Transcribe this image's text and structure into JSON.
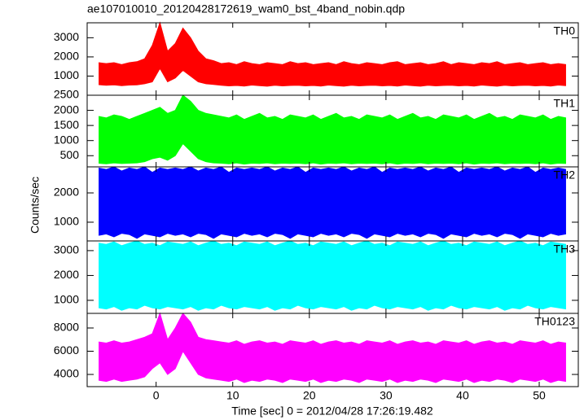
{
  "chart_data": {
    "type": "band",
    "title": "ae107010010_20120428172619_wam0_bst_4band_nobin.qdp",
    "ylabel": "Counts/sec",
    "xlabel": "Time [sec] 0 = 2012/04/28 17:26:19.482",
    "xlim": [
      -9,
      55.1
    ],
    "xticks": [
      0,
      10,
      20,
      30,
      40,
      50
    ],
    "x": [
      -7.5,
      -6.5,
      -5.5,
      -4.5,
      -3.5,
      -2.5,
      -1.5,
      -0.5,
      0.5,
      1.5,
      2.5,
      3.5,
      4.5,
      5.5,
      6.5,
      7.5,
      8.5,
      9.5,
      10.5,
      11.5,
      12.5,
      13.5,
      14.5,
      15.5,
      16.5,
      17.5,
      18.5,
      19.5,
      20.5,
      21.5,
      22.5,
      23.5,
      24.5,
      25.5,
      26.5,
      27.5,
      28.5,
      29.5,
      30.5,
      31.5,
      32.5,
      33.5,
      34.5,
      35.5,
      36.5,
      37.5,
      38.5,
      39.5,
      40.5,
      41.5,
      42.5,
      43.5,
      44.5,
      45.5,
      46.5,
      47.5,
      48.5,
      49.5,
      50.5,
      51.5,
      52.5,
      53.5
    ],
    "panels": [
      {
        "label": "TH0",
        "color": "#ff0000",
        "ylim": [
          0,
          3780
        ],
        "yticks": [
          1000,
          2000,
          3000
        ],
        "upper": [
          1700,
          1650,
          1700,
          1600,
          1700,
          1750,
          1900,
          2600,
          3780,
          2300,
          2700,
          3500,
          3000,
          2300,
          1900,
          1800,
          1650,
          1700,
          1600,
          1750,
          1650,
          1600,
          1700,
          1650,
          1600,
          1750,
          1650,
          1700,
          1600,
          1650,
          1700,
          1600,
          1750,
          1650,
          1600,
          1700,
          1650,
          1600,
          1700,
          1750,
          1600,
          1650,
          1700,
          1600,
          1650,
          1750,
          1600,
          1700,
          1650,
          1600,
          1700,
          1650,
          1750,
          1600,
          1650,
          1700,
          1600,
          1650,
          1700,
          1600,
          1650,
          1600
        ],
        "lower": [
          550,
          520,
          540,
          500,
          530,
          540,
          600,
          700,
          1400,
          700,
          900,
          1300,
          1000,
          700,
          600,
          560,
          520,
          490,
          510,
          480,
          530,
          500,
          470,
          520,
          490,
          510,
          520,
          490,
          510,
          480,
          530,
          500,
          470,
          520,
          490,
          510,
          520,
          490,
          510,
          480,
          530,
          500,
          470,
          520,
          490,
          510,
          520,
          490,
          510,
          480,
          530,
          500,
          470,
          520,
          490,
          510,
          520,
          490,
          510,
          480,
          530,
          500
        ]
      },
      {
        "label": "TH1",
        "color": "#00ff00",
        "ylim": [
          130,
          2500
        ],
        "yticks": [
          500,
          1000,
          1500,
          2000,
          2500
        ],
        "upper": [
          1800,
          1750,
          1850,
          1800,
          1700,
          1800,
          1900,
          2000,
          2100,
          1900,
          2000,
          2500,
          2300,
          2000,
          1900,
          1850,
          1800,
          1750,
          1850,
          1700,
          1800,
          1900,
          1750,
          1800,
          1700,
          1850,
          1800,
          1750,
          1850,
          1700,
          1800,
          1900,
          1750,
          1800,
          1700,
          1850,
          1800,
          1750,
          1850,
          1700,
          1800,
          1900,
          1750,
          1800,
          1700,
          1850,
          1800,
          1750,
          1850,
          1700,
          1800,
          1900,
          1750,
          1800,
          1700,
          1850,
          1800,
          1750,
          1850,
          1700,
          1800,
          1750
        ],
        "lower": [
          250,
          230,
          260,
          240,
          250,
          260,
          300,
          400,
          450,
          350,
          500,
          900,
          650,
          400,
          300,
          260,
          250,
          230,
          260,
          220,
          250,
          240,
          260,
          230,
          250,
          240,
          250,
          230,
          260,
          220,
          250,
          240,
          260,
          230,
          250,
          240,
          250,
          230,
          260,
          220,
          250,
          240,
          260,
          230,
          250,
          240,
          250,
          230,
          260,
          220,
          250,
          240,
          260,
          230,
          250,
          240,
          250,
          230,
          260,
          220,
          250,
          240
        ]
      },
      {
        "label": "TH2",
        "color": "#0000ff",
        "ylim": [
          360,
          2890
        ],
        "yticks": [
          1000,
          2000
        ],
        "upper": [
          2850,
          2800,
          2890,
          2750,
          2850,
          2800,
          2890,
          2700,
          2850,
          2800,
          2850,
          2800,
          2890,
          2750,
          2850,
          2800,
          2890,
          2700,
          2850,
          2800,
          2850,
          2800,
          2890,
          2750,
          2850,
          2800,
          2890,
          2700,
          2850,
          2800,
          2850,
          2800,
          2890,
          2750,
          2850,
          2800,
          2890,
          2700,
          2850,
          2800,
          2850,
          2800,
          2890,
          2750,
          2850,
          2800,
          2890,
          2700,
          2850,
          2800,
          2850,
          2800,
          2890,
          2750,
          2850,
          2800,
          2890,
          2700,
          2850,
          2800,
          2850,
          2800
        ],
        "lower": [
          550,
          600,
          500,
          620,
          580,
          450,
          600,
          550,
          500,
          620,
          550,
          600,
          500,
          620,
          580,
          450,
          600,
          550,
          500,
          620,
          550,
          600,
          500,
          620,
          580,
          450,
          600,
          550,
          500,
          620,
          550,
          600,
          500,
          620,
          580,
          450,
          600,
          550,
          500,
          620,
          550,
          600,
          500,
          620,
          580,
          450,
          600,
          550,
          500,
          620,
          550,
          600,
          500,
          620,
          580,
          450,
          600,
          550,
          500,
          620,
          550,
          600
        ]
      },
      {
        "label": "TH3",
        "color": "#00ffff",
        "ylim": [
          475,
          3390
        ],
        "yticks": [
          1000,
          2000,
          3000
        ],
        "upper": [
          3300,
          3250,
          3350,
          3200,
          3300,
          3390,
          3250,
          3300,
          3200,
          3350,
          3300,
          3250,
          3350,
          3200,
          3300,
          3390,
          3250,
          3300,
          3200,
          3350,
          3300,
          3250,
          3350,
          3200,
          3300,
          3390,
          3250,
          3300,
          3200,
          3350,
          3300,
          3250,
          3350,
          3200,
          3300,
          3390,
          3250,
          3300,
          3200,
          3350,
          3300,
          3250,
          3350,
          3200,
          3300,
          3390,
          3250,
          3300,
          3200,
          3350,
          3300,
          3250,
          3350,
          3200,
          3300,
          3390,
          3250,
          3300,
          3200,
          3350,
          3300,
          3250
        ],
        "lower": [
          700,
          650,
          750,
          600,
          700,
          650,
          800,
          700,
          650,
          750,
          700,
          650,
          750,
          600,
          700,
          650,
          800,
          700,
          650,
          750,
          700,
          650,
          750,
          600,
          700,
          650,
          800,
          700,
          650,
          750,
          700,
          650,
          750,
          600,
          700,
          650,
          800,
          700,
          650,
          750,
          700,
          650,
          750,
          600,
          700,
          650,
          800,
          700,
          650,
          750,
          700,
          650,
          750,
          600,
          700,
          650,
          800,
          700,
          650,
          750,
          700,
          650
        ]
      },
      {
        "label": "TH0123",
        "color": "#ff00ff",
        "ylim": [
          2950,
          9260
        ],
        "yticks": [
          4000,
          6000,
          8000
        ],
        "upper": [
          6800,
          6700,
          6900,
          6700,
          6800,
          7000,
          7200,
          7500,
          9260,
          7000,
          8000,
          9260,
          8500,
          7200,
          7000,
          6900,
          6800,
          6700,
          6900,
          6600,
          6800,
          6900,
          6700,
          6800,
          6600,
          6900,
          6800,
          6700,
          6900,
          6600,
          6800,
          6900,
          6700,
          6800,
          6600,
          6900,
          6800,
          6700,
          6900,
          6600,
          6800,
          6900,
          6700,
          6800,
          6600,
          6900,
          6800,
          6700,
          6900,
          6600,
          6800,
          6900,
          6700,
          6800,
          6600,
          6900,
          6800,
          6700,
          6900,
          6600,
          6800,
          6700
        ],
        "lower": [
          3500,
          3400,
          3600,
          3400,
          3500,
          3600,
          3800,
          4500,
          5000,
          4000,
          4500,
          6000,
          5000,
          4000,
          3700,
          3600,
          3500,
          3400,
          3600,
          3300,
          3500,
          3400,
          3600,
          3500,
          3300,
          3600,
          3500,
          3400,
          3600,
          3300,
          3500,
          3400,
          3600,
          3500,
          3300,
          3600,
          3500,
          3400,
          3600,
          3300,
          3500,
          3400,
          3600,
          3500,
          3300,
          3600,
          3500,
          3400,
          3600,
          3300,
          3500,
          3400,
          3600,
          3500,
          3300,
          3600,
          3500,
          3400,
          3600,
          3300,
          3500,
          3400
        ]
      }
    ]
  }
}
